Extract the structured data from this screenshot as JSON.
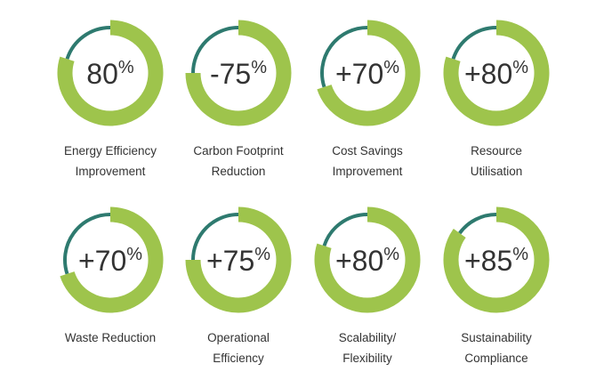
{
  "colors": {
    "value_arc": "#9ec44c",
    "remainder_arc": "#2e7a6f",
    "value_text": "#333333",
    "label_text": "#333333"
  },
  "chart_data": [
    {
      "type": "pie",
      "value_text": "80",
      "value": 80,
      "percent_sign": "%",
      "label_lines": [
        "Energy Efficiency",
        "Improvement"
      ]
    },
    {
      "type": "pie",
      "value_text": "-75",
      "value": 75,
      "percent_sign": "%",
      "label_lines": [
        "Carbon Footprint",
        "Reduction"
      ]
    },
    {
      "type": "pie",
      "value_text": "+70",
      "value": 70,
      "percent_sign": "%",
      "label_lines": [
        "Cost Savings",
        "Improvement"
      ]
    },
    {
      "type": "pie",
      "value_text": "+80",
      "value": 80,
      "percent_sign": "%",
      "label_lines": [
        "Resource",
        "Utilisation"
      ]
    },
    {
      "type": "pie",
      "value_text": "+70",
      "value": 70,
      "percent_sign": "%",
      "label_lines": [
        "Waste Reduction"
      ]
    },
    {
      "type": "pie",
      "value_text": "+75",
      "value": 75,
      "percent_sign": "%",
      "label_lines": [
        "Operational",
        "Efficiency"
      ]
    },
    {
      "type": "pie",
      "value_text": "+80",
      "value": 80,
      "percent_sign": "%",
      "label_lines": [
        "Scalability/",
        "Flexibility"
      ]
    },
    {
      "type": "pie",
      "value_text": "+85",
      "value": 85,
      "percent_sign": "%",
      "label_lines": [
        "Sustainability",
        "Compliance"
      ]
    }
  ]
}
